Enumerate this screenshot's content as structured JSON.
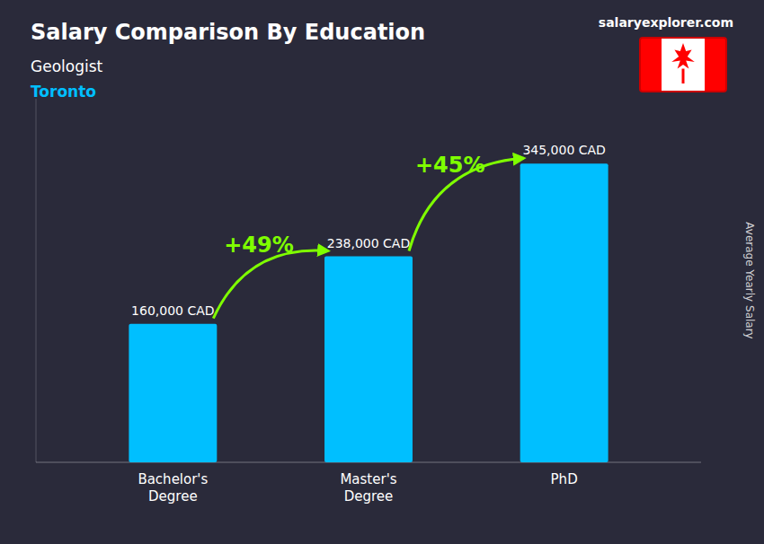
{
  "chart_data": {
    "type": "bar",
    "title": "Salary Comparison By Education",
    "subtitle": [
      "Geologist",
      "Toronto"
    ],
    "source": "salaryexplorer.com",
    "ylabel": "Average Yearly Salary",
    "categories": [
      "Bachelor's\nDegree",
      "Master's\nDegree",
      "PhD"
    ],
    "values": [
      160000,
      238000,
      345000
    ],
    "value_labels": [
      "160,000 CAD",
      "238,000 CAD",
      "345,000 CAD"
    ],
    "data_labels": true,
    "color": "#00BFFF",
    "ylim": [
      0,
      420000
    ],
    "tick_labels": "x",
    "annotations": [
      "+49%",
      "+45%"
    ]
  }
}
